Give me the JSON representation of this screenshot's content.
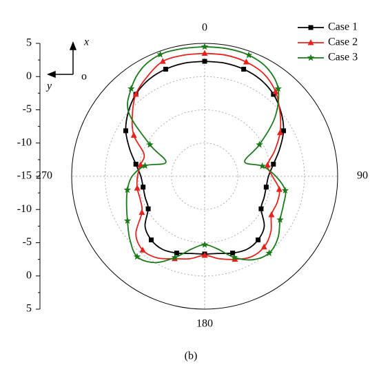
{
  "chart_data": {
    "type": "polar",
    "theta": [
      0,
      10,
      20,
      30,
      40,
      50,
      60,
      70,
      80,
      90,
      100,
      110,
      120,
      130,
      140,
      150,
      160,
      170,
      180,
      190,
      200,
      210,
      220,
      230,
      240,
      250,
      260,
      270,
      280,
      290,
      300,
      310,
      320,
      330,
      340,
      350,
      360
    ],
    "thetaticks": [
      0,
      90,
      180,
      270
    ],
    "rlim": [
      -15,
      5
    ],
    "rticks": [
      -15,
      -10,
      -5,
      0,
      5
    ],
    "grid": true,
    "legend": "upper right",
    "series": [
      {
        "name": "Case 1",
        "color": "#000000",
        "marker": "square",
        "values": [
          2.3,
          2.3,
          2.15,
          1.8,
          1.1,
          0,
          -1.3,
          -3.0,
          -4.5,
          -5.4,
          -5.6,
          -5.5,
          -5.2,
          -3.3,
          -2.5,
          -2.3,
          -2.7,
          -3.2,
          -3.3,
          -3.2,
          -2.7,
          -2.3,
          -2.5,
          -3.3,
          -5.2,
          -5.5,
          -5.6,
          -5.4,
          -4.5,
          -3.0,
          -1.3,
          0,
          1.1,
          1.8,
          2.15,
          2.3,
          2.3
        ]
      },
      {
        "name": "Case 2",
        "color": "#e8211b",
        "marker": "triangle",
        "values": [
          3.5,
          3.5,
          3.3,
          2.8,
          1.6,
          -0.2,
          -1.9,
          -3.8,
          -5.4,
          -4.8,
          -3.6,
          -3.4,
          -3.4,
          -2.0,
          -1.1,
          -1.0,
          -1.7,
          -2.4,
          -3.1,
          -2.4,
          -1.8,
          -0.8,
          -0.5,
          -1.5,
          -4.1,
          -4.7,
          -4.7,
          -4.9,
          -5.2,
          -5.3,
          -2.7,
          -0.8,
          1.1,
          2.3,
          3.4,
          3.5,
          3.5
        ]
      },
      {
        "name": "Case 3",
        "color": "#1a7a1a",
        "marker": "star",
        "values": [
          4.5,
          4.5,
          4.4,
          3.8,
          2.2,
          -1.2,
          -5.5,
          -8.6,
          -6.2,
          -4.3,
          -2.7,
          -2.4,
          -1.9,
          -0.6,
          0.1,
          -0.5,
          -2.0,
          -3.9,
          -4.7,
          -3.9,
          -2.0,
          0.0,
          0.8,
          -0.3,
          -1.6,
          -2.5,
          -3.2,
          -4.1,
          -5.9,
          -8.8,
          -5.5,
          -0.1,
          2.2,
          3.8,
          4.5,
          4.5,
          4.5
        ]
      }
    ],
    "orientation_labels": {
      "x": "x",
      "y": "y",
      "origin": "o"
    }
  },
  "caption": "(b)"
}
